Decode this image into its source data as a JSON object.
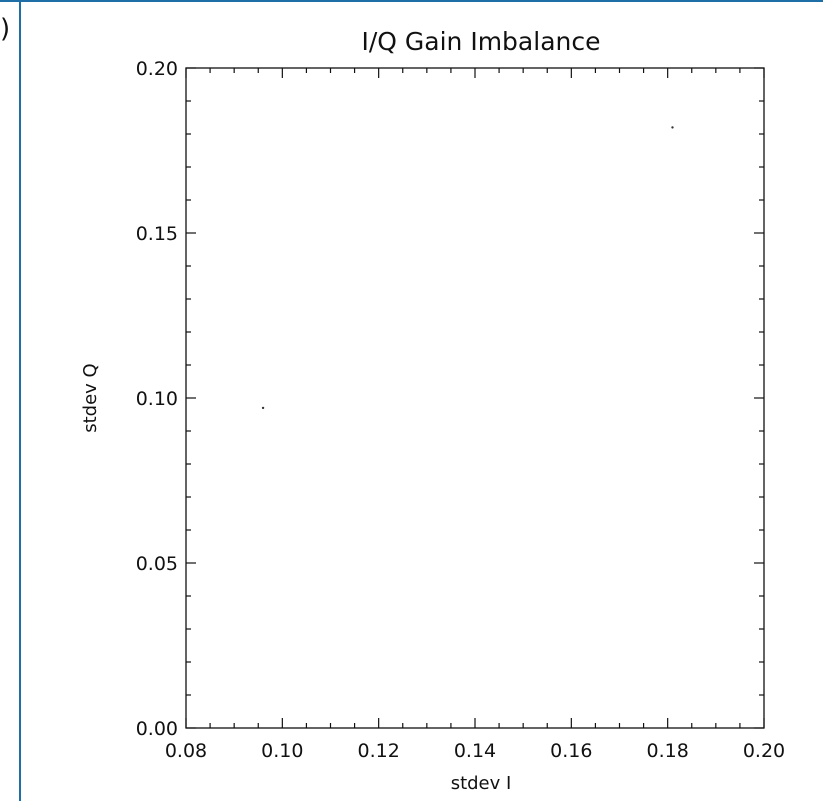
{
  "panel": {
    "corner_glyph": ")"
  },
  "chart_data": {
    "type": "scatter",
    "title": "I/Q Gain Imbalance",
    "xlabel": "stdev I",
    "ylabel": "stdev Q",
    "xlim": [
      0.08,
      0.2
    ],
    "ylim": [
      0.0,
      0.2
    ],
    "xticks": [
      "0.08",
      "0.10",
      "0.12",
      "0.14",
      "0.16",
      "0.18",
      "0.20"
    ],
    "yticks": [
      "0.00",
      "0.05",
      "0.10",
      "0.15",
      "0.20"
    ],
    "grid": false,
    "series": [
      {
        "x": [
          0.096,
          0.181
        ],
        "y": [
          0.097,
          0.182
        ]
      }
    ]
  }
}
